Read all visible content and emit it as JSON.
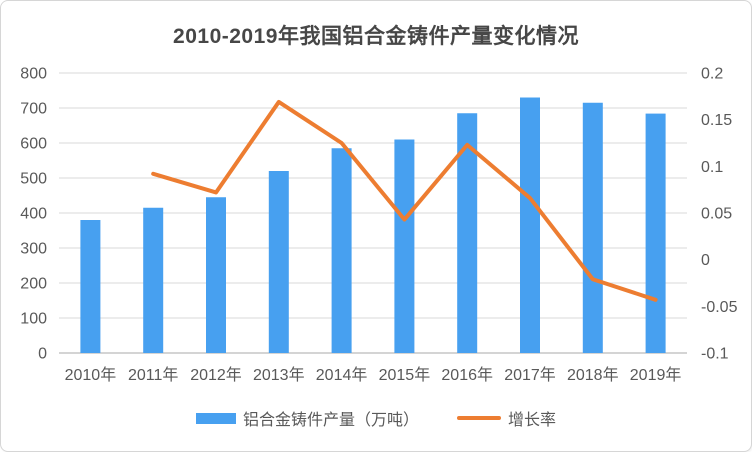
{
  "chart_data": {
    "type": "bar",
    "combo": "bar+line",
    "title": "2010-2019年我国铝合金铸件产量变化情况",
    "categories": [
      "2010年",
      "2011年",
      "2012年",
      "2013年",
      "2014年",
      "2015年",
      "2016年",
      "2017年",
      "2018年",
      "2019年"
    ],
    "series": [
      {
        "name": "铝合金铸件产量（万吨）",
        "type": "bar",
        "axis": "left",
        "color": "#47A0F0",
        "values": [
          380,
          415,
          445,
          520,
          585,
          610,
          685,
          730,
          715,
          684
        ]
      },
      {
        "name": "增长率",
        "type": "line",
        "axis": "right",
        "color": "#ED7D31",
        "values": [
          null,
          0.092,
          0.072,
          0.169,
          0.125,
          0.043,
          0.123,
          0.066,
          -0.021,
          -0.043
        ]
      }
    ],
    "left_axis": {
      "min": 0,
      "max": 800,
      "step": 100,
      "tick_labels": [
        "0",
        "100",
        "200",
        "300",
        "400",
        "500",
        "600",
        "700",
        "800"
      ]
    },
    "right_axis": {
      "min": -0.1,
      "max": 0.2,
      "step": 0.05,
      "tick_labels": [
        "-0.1",
        "-0.05",
        "0",
        "0.05",
        "0.1",
        "0.15",
        "0.2"
      ]
    },
    "grid": "horizontal",
    "legend_position": "bottom",
    "xlabel": "",
    "ylabel": ""
  },
  "legend": {
    "items": [
      {
        "label": "铝合金铸件产量（万吨）",
        "swatch": "bar",
        "color": "#47A0F0"
      },
      {
        "label": "增长率",
        "swatch": "line",
        "color": "#ED7D31"
      }
    ]
  },
  "colors": {
    "bar": "#47A0F0",
    "line": "#ED7D31",
    "gridline": "#D9D9D9",
    "axis_line": "#C6C6C6",
    "tick_text": "#595959",
    "title_text": "#474747",
    "background": "#FFFFFF"
  }
}
